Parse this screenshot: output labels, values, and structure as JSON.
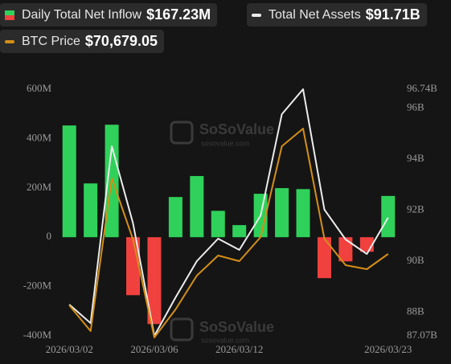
{
  "chart_data": {
    "type": "bar-line",
    "categories": [
      "2026/03/02",
      null,
      null,
      null,
      "2026/03/06",
      null,
      null,
      null,
      "2026/03/12",
      null,
      null,
      null,
      null,
      null,
      null,
      "2026/03/23"
    ],
    "series": [
      {
        "name": "Daily Total Net Inflow",
        "value_label": "$167.23M",
        "type": "bar",
        "colors": {
          "positive": "#2fd15a",
          "negative": "#f0413f"
        },
        "values": [
          453,
          218,
          456,
          -235,
          -352,
          163,
          248,
          107,
          49,
          176,
          199,
          195,
          -166,
          -98,
          -59,
          167.23
        ]
      },
      {
        "name": "Total Net Assets",
        "value_label": "$91.71B",
        "type": "line",
        "axis": "y2",
        "color": "#ececec",
        "values": [
          88.3,
          87.57,
          94.5,
          91.48,
          87.07,
          88.58,
          90.0,
          90.88,
          90.44,
          91.79,
          95.76,
          96.74,
          92.02,
          90.85,
          90.28,
          91.71
        ]
      },
      {
        "name": "BTC Price",
        "value_label": "$70,679.05",
        "type": "line",
        "axis": "hidden",
        "color": "#d48f17",
        "values": [
          68415,
          67283,
          74003,
          71315,
          67000,
          68238,
          69723,
          70608,
          70360,
          71421,
          75418,
          76197,
          71350,
          70183,
          70006,
          70679.05
        ]
      }
    ],
    "ylim": [
      -400,
      600
    ],
    "yticks": [
      {
        "value": -400,
        "label": "-400M"
      },
      {
        "value": -200,
        "label": "-200M"
      },
      {
        "value": 0,
        "label": "0"
      },
      {
        "value": 200,
        "label": "200M"
      },
      {
        "value": 400,
        "label": "400M"
      },
      {
        "value": 600,
        "label": "600M"
      }
    ],
    "y2lim": [
      87.07,
      96.74
    ],
    "y2ticks": [
      {
        "value": 87.07,
        "label": "87.07B"
      },
      {
        "value": 88,
        "label": "88B"
      },
      {
        "value": 90,
        "label": "90B"
      },
      {
        "value": 92,
        "label": "92B"
      },
      {
        "value": 94,
        "label": "94B"
      },
      {
        "value": 96,
        "label": "96B"
      },
      {
        "value": 96.74,
        "label": "96.74B"
      }
    ],
    "watermark": {
      "brand": "SoSoValue",
      "site": "sosovalue.com"
    }
  }
}
